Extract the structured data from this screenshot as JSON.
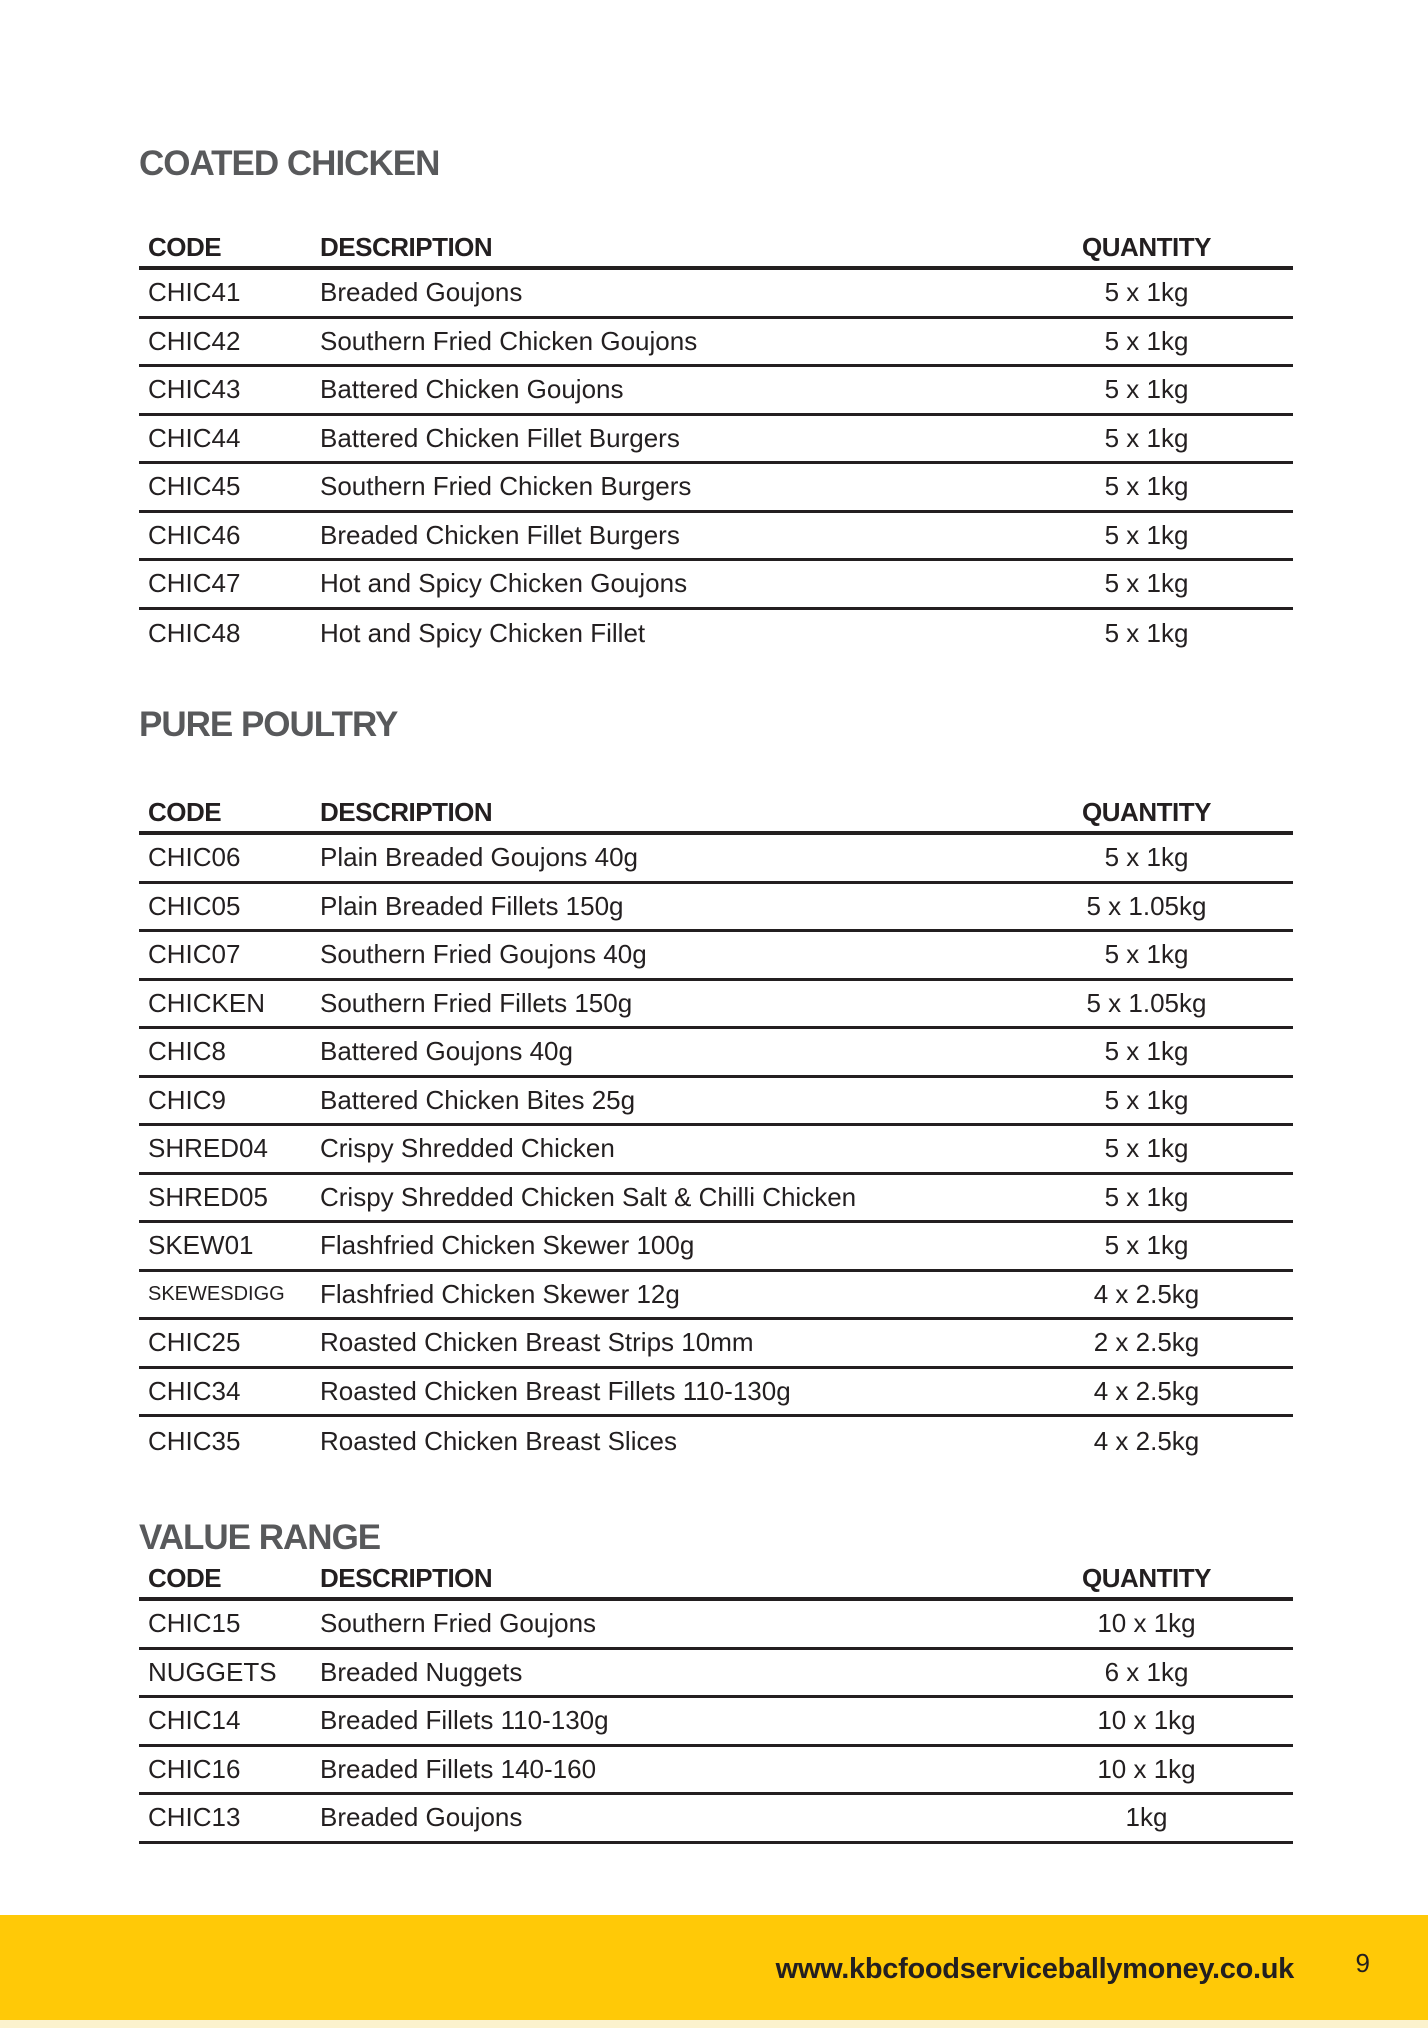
{
  "colors": {
    "accent_yellow": "#FFC907",
    "heading_gray": "#58595B",
    "text_dark": "#231F20"
  },
  "sections": [
    {
      "title": "COATED CHICKEN",
      "columns": [
        "CODE",
        "DESCRIPTION",
        "QUANTITY"
      ],
      "last_row_divider": false,
      "rows": [
        {
          "code": "CHIC41",
          "description": "Breaded Goujons",
          "quantity": "5 x 1kg"
        },
        {
          "code": "CHIC42",
          "description": "Southern Fried Chicken Goujons",
          "quantity": "5 x 1kg"
        },
        {
          "code": "CHIC43",
          "description": "Battered Chicken Goujons",
          "quantity": "5 x 1kg"
        },
        {
          "code": "CHIC44",
          "description": "Battered Chicken Fillet Burgers",
          "quantity": "5 x 1kg"
        },
        {
          "code": "CHIC45",
          "description": "Southern Fried Chicken Burgers",
          "quantity": "5 x 1kg"
        },
        {
          "code": "CHIC46",
          "description": "Breaded Chicken Fillet Burgers",
          "quantity": "5 x 1kg"
        },
        {
          "code": "CHIC47",
          "description": "Hot and Spicy Chicken Goujons",
          "quantity": "5 x 1kg"
        },
        {
          "code": "CHIC48",
          "description": "Hot and Spicy Chicken Fillet",
          "quantity": "5 x 1kg"
        }
      ]
    },
    {
      "title": "PURE POULTRY",
      "columns": [
        "CODE",
        "DESCRIPTION",
        "QUANTITY"
      ],
      "last_row_divider": false,
      "rows": [
        {
          "code": "CHIC06",
          "description": "Plain Breaded Goujons 40g",
          "quantity": "5 x 1kg"
        },
        {
          "code": "CHIC05",
          "description": "Plain Breaded Fillets 150g",
          "quantity": "5 x 1.05kg"
        },
        {
          "code": "CHIC07",
          "description": "Southern Fried Goujons 40g",
          "quantity": "5 x 1kg"
        },
        {
          "code": "CHICKEN",
          "description": "Southern Fried Fillets 150g",
          "quantity": "5 x 1.05kg"
        },
        {
          "code": "CHIC8",
          "description": "Battered Goujons 40g",
          "quantity": "5 x 1kg"
        },
        {
          "code": "CHIC9",
          "description": "Battered Chicken Bites 25g",
          "quantity": "5 x 1kg"
        },
        {
          "code": "SHRED04",
          "description": "Crispy Shredded Chicken",
          "quantity": "5 x 1kg"
        },
        {
          "code": "SHRED05",
          "description": "Crispy Shredded Chicken Salt & Chilli Chicken",
          "quantity": "5 x 1kg"
        },
        {
          "code": "SKEW01",
          "description": "Flashfried Chicken Skewer 100g",
          "quantity": "5 x 1kg"
        },
        {
          "code": "SKEWESDIGG",
          "code_small": true,
          "description": "Flashfried Chicken Skewer 12g",
          "quantity": "4 x 2.5kg"
        },
        {
          "code": "CHIC25",
          "description": "Roasted Chicken Breast Strips 10mm",
          "quantity": "2 x 2.5kg"
        },
        {
          "code": "CHIC34",
          "description": "Roasted Chicken Breast Fillets 110-130g",
          "quantity": "4 x 2.5kg"
        },
        {
          "code": "CHIC35",
          "description": "Roasted Chicken Breast Slices",
          "quantity": "4 x 2.5kg"
        }
      ]
    },
    {
      "title": "VALUE RANGE",
      "columns": [
        "CODE",
        "DESCRIPTION",
        "QUANTITY"
      ],
      "last_row_divider": true,
      "rows": [
        {
          "code": "CHIC15",
          "description": "Southern Fried Goujons",
          "quantity": "10 x 1kg"
        },
        {
          "code": "NUGGETS",
          "description": "Breaded Nuggets",
          "quantity": "6 x 1kg"
        },
        {
          "code": "CHIC14",
          "description": "Breaded Fillets 110-130g",
          "quantity": "10 x 1kg"
        },
        {
          "code": "CHIC16",
          "description": "Breaded Fillets 140-160",
          "quantity": "10 x 1kg"
        },
        {
          "code": "CHIC13",
          "description": "Breaded Goujons",
          "quantity": "1kg"
        }
      ]
    }
  ],
  "footer": {
    "url": "www.kbcfoodserviceballymoney.co.uk",
    "page_number": "9"
  }
}
